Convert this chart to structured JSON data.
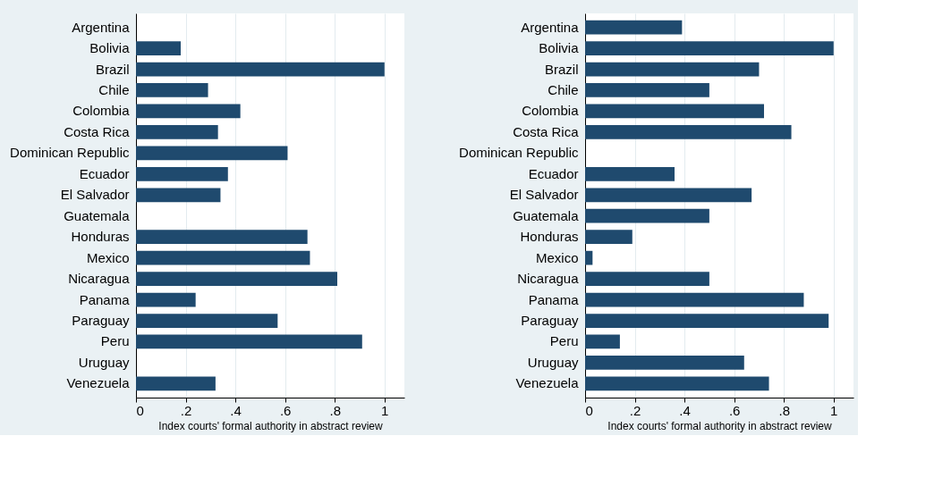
{
  "chart_data": [
    {
      "type": "bar",
      "orientation": "horizontal",
      "xlabel": "Index courts' formal authority in abstract review",
      "categories": [
        "Argentina",
        "Bolivia",
        "Brazil",
        "Chile",
        "Colombia",
        "Costa Rica",
        "Dominican Republic",
        "Ecuador",
        "El Salvador",
        "Guatemala",
        "Honduras",
        "Mexico",
        "Nicaragua",
        "Panama",
        "Paraguay",
        "Peru",
        "Uruguay",
        "Venezuela"
      ],
      "values": [
        0,
        0.18,
        1.0,
        0.29,
        0.42,
        0.33,
        0.61,
        0.37,
        0.34,
        0.0,
        0.69,
        0.7,
        0.81,
        0.24,
        0.57,
        0.91,
        0,
        0.32
      ],
      "color": "#1f4a6e",
      "xlim": [
        0,
        1.08
      ],
      "xticks": [
        0,
        {
          "value": 0.2,
          "label": ".2"
        },
        {
          "value": 0.4,
          "label": ".4"
        },
        {
          "value": 0.6,
          "label": ".6"
        },
        {
          "value": 0.8,
          "label": ".8"
        },
        1
      ],
      "grid": "x"
    },
    {
      "type": "bar",
      "orientation": "horizontal",
      "xlabel": "Index courts' formal authority in abstract review",
      "categories": [
        "Argentina",
        "Bolivia",
        "Brazil",
        "Chile",
        "Colombia",
        "Costa Rica",
        "Dominican Republic",
        "Ecuador",
        "El Salvador",
        "Guatemala",
        "Honduras",
        "Mexico",
        "Nicaragua",
        "Panama",
        "Paraguay",
        "Peru",
        "Uruguay",
        "Venezuela"
      ],
      "values": [
        0.39,
        1.0,
        0.7,
        0.5,
        0.72,
        0.83,
        0.0,
        0.36,
        0.67,
        0.5,
        0.19,
        0.03,
        0.5,
        0.88,
        0.98,
        0.14,
        0.64,
        0.74
      ],
      "color": "#1f4a6e",
      "xlim": [
        0,
        1.08
      ],
      "xticks": [
        0,
        {
          "value": 0.2,
          "label": ".2"
        },
        {
          "value": 0.4,
          "label": ".4"
        },
        {
          "value": 0.6,
          "label": ".6"
        },
        {
          "value": 0.8,
          "label": ".8"
        },
        1
      ],
      "grid": "x"
    }
  ]
}
